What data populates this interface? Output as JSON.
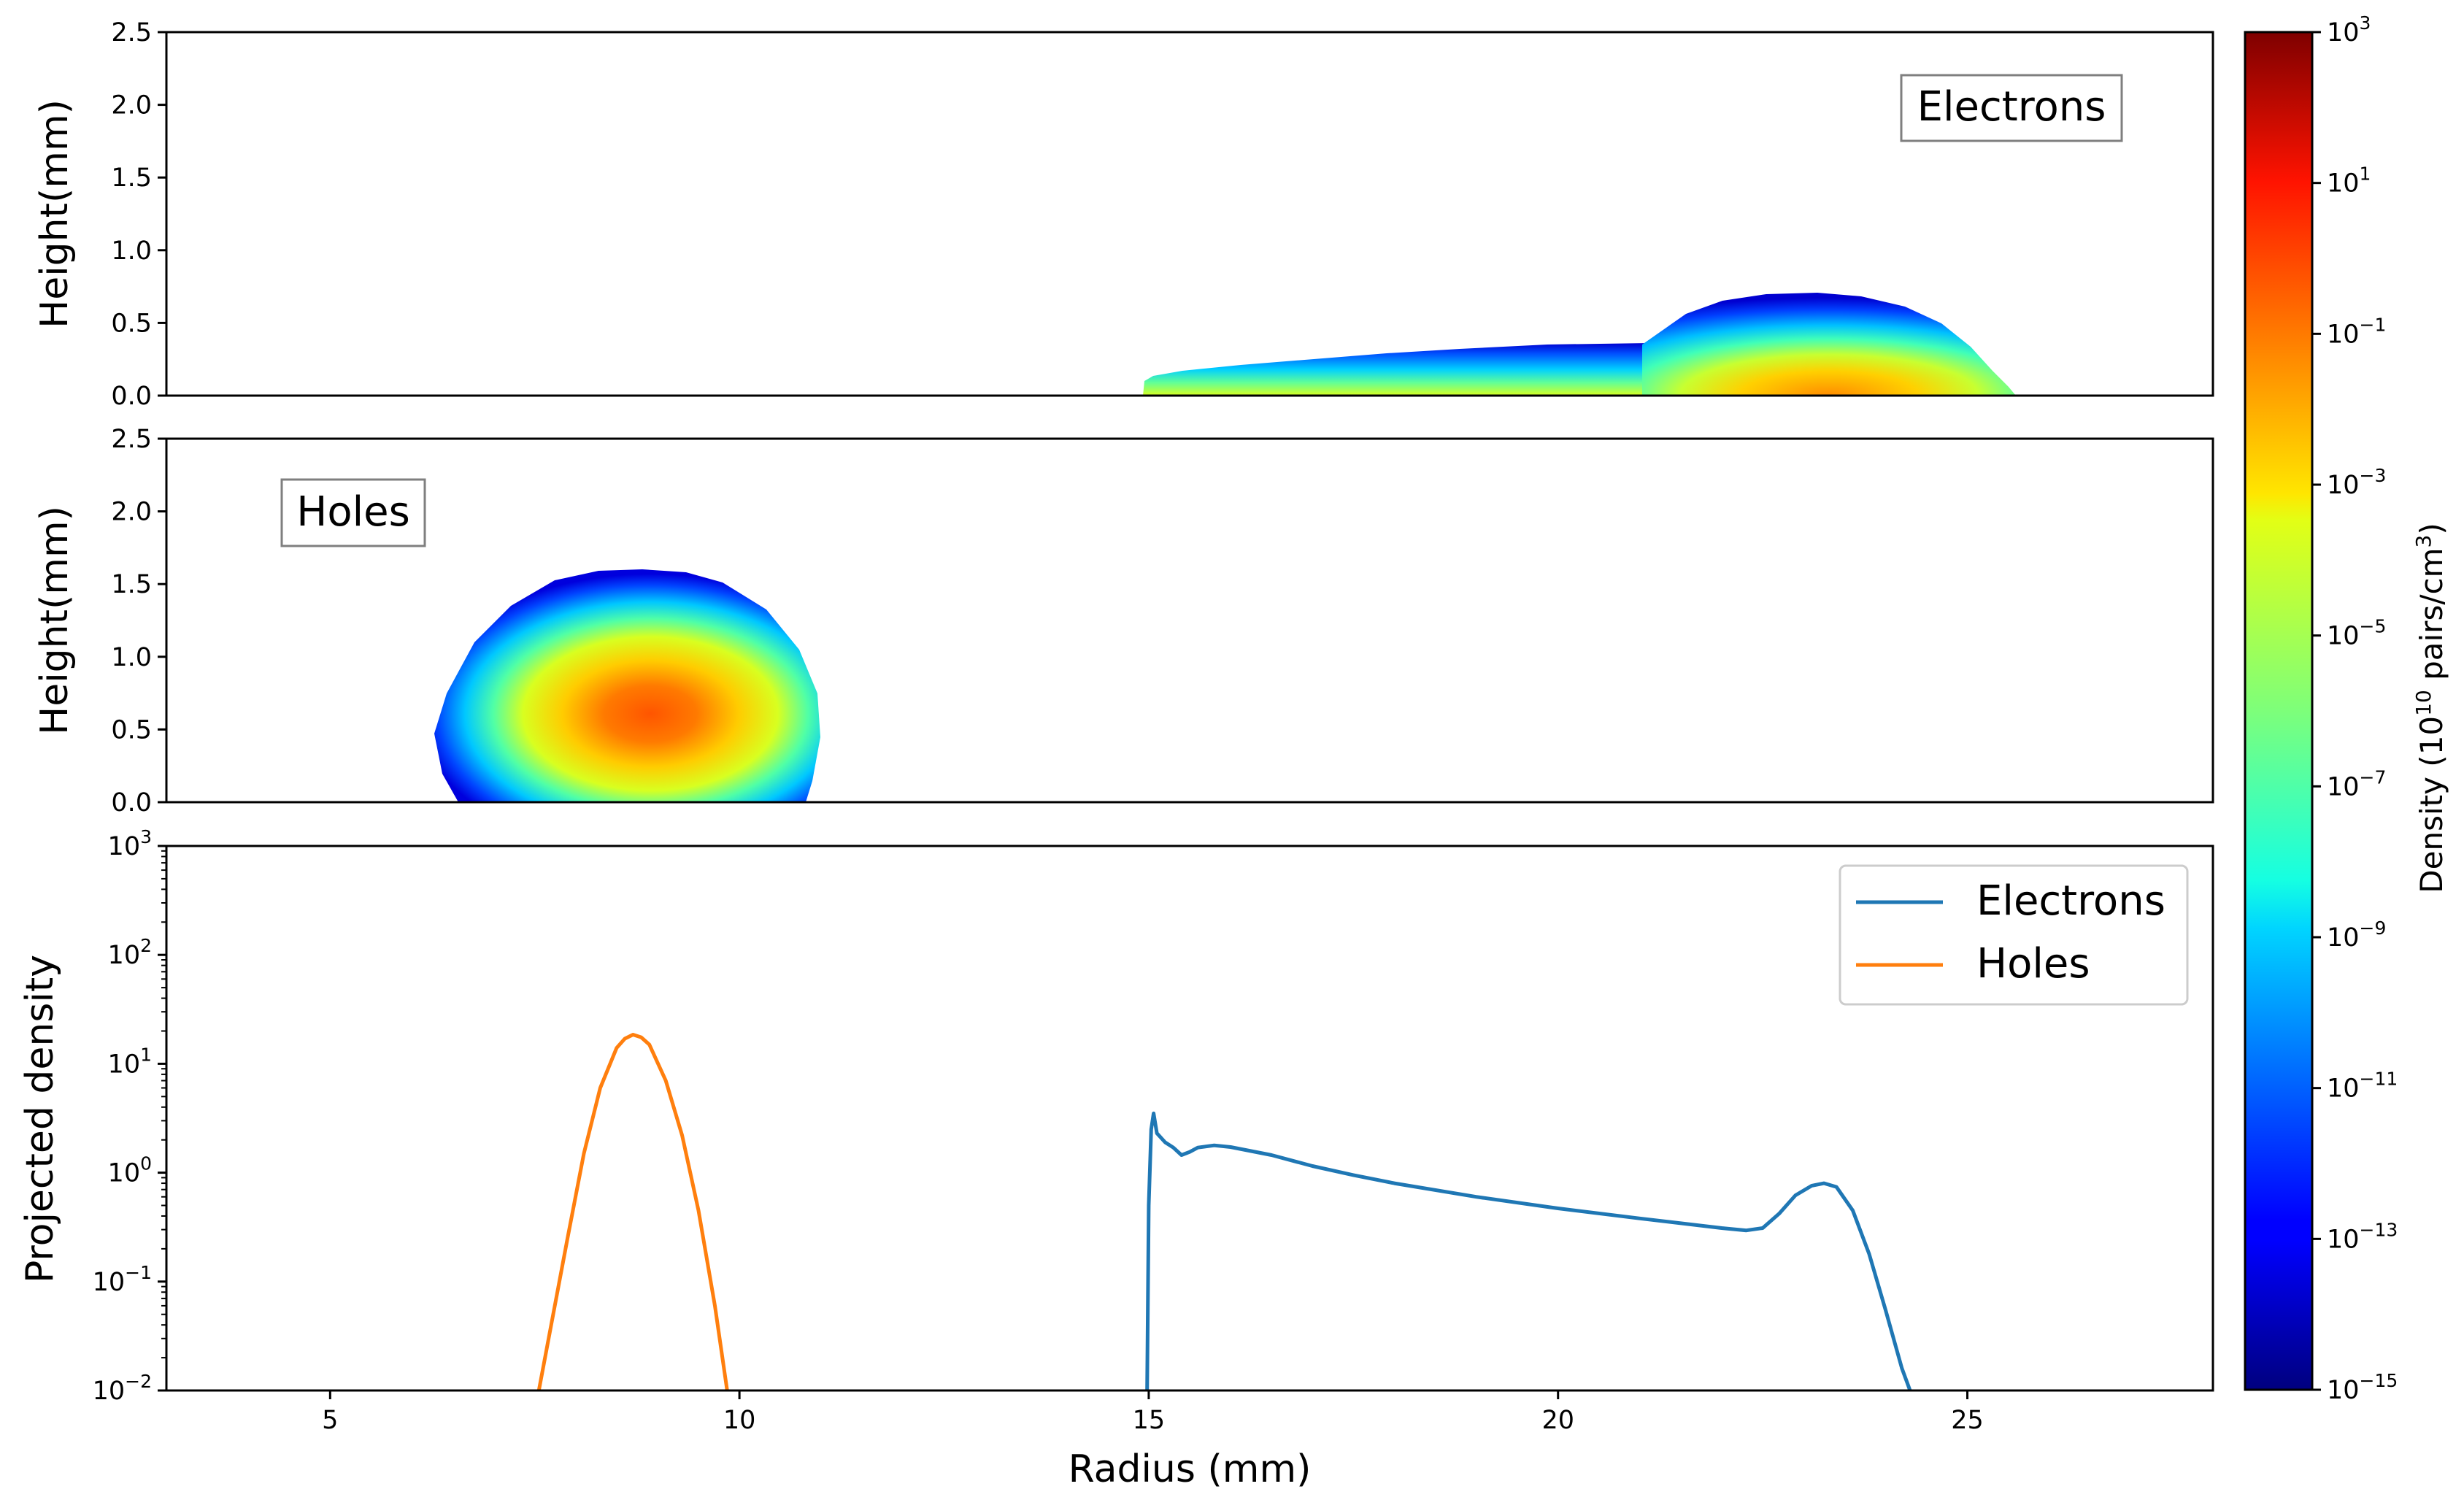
{
  "chart_data": [
    {
      "type": "heatmap",
      "panel": "electrons-density-map",
      "label": "Electrons",
      "ylabel": "Height(mm)",
      "xlim": [
        3,
        28
      ],
      "ylim": [
        0,
        2.5
      ],
      "yticks": [
        "0.0",
        "0.5",
        "1.0",
        "1.5",
        "2.0",
        "2.5"
      ],
      "colormap": "jet",
      "regions": [
        {
          "name": "tail",
          "x_start": 15.0,
          "x_end": 21.2,
          "height_start": 0.12,
          "height_end": 0.37,
          "peak_log_density": -4
        },
        {
          "name": "main-lobe",
          "x_center": 23.2,
          "x_start": 21.0,
          "x_end": 26.2,
          "max_height": 0.7,
          "peak_log_density": -1.5
        }
      ]
    },
    {
      "type": "heatmap",
      "panel": "holes-density-map",
      "label": "Holes",
      "ylabel": "Height(mm)",
      "xlim": [
        3,
        28
      ],
      "ylim": [
        0,
        2.5
      ],
      "yticks": [
        "0.0",
        "0.5",
        "1.0",
        "1.5",
        "2.0",
        "2.5"
      ],
      "colormap": "jet",
      "regions": [
        {
          "name": "lobe",
          "x_center": 8.7,
          "x_start": 6.3,
          "x_end": 11.0,
          "max_height": 1.6,
          "peak_log_density": -0.5
        }
      ]
    },
    {
      "type": "line",
      "panel": "projected-density",
      "xlabel": "Radius (mm)",
      "ylabel": "Projected density",
      "xlim": [
        3,
        28
      ],
      "ylim": [
        0.01,
        1000
      ],
      "yscale": "log",
      "xticks": [
        "5",
        "10",
        "15",
        "20",
        "25"
      ],
      "yticks": [
        {
          "base": "10",
          "exp": "−2"
        },
        {
          "base": "10",
          "exp": "−1"
        },
        {
          "base": "10",
          "exp": "0"
        },
        {
          "base": "10",
          "exp": "1"
        },
        {
          "base": "10",
          "exp": "2"
        },
        {
          "base": "10",
          "exp": "3"
        }
      ],
      "legend": "top-right",
      "series": [
        {
          "name": "Electrons",
          "color": "#1f77b4",
          "x": [
            14.98,
            15.0,
            15.03,
            15.06,
            15.1,
            15.2,
            15.3,
            15.4,
            15.5,
            15.6,
            15.8,
            16.0,
            16.5,
            17,
            17.5,
            18,
            19,
            20,
            21,
            22,
            22.3,
            22.5,
            22.7,
            22.9,
            23.1,
            23.25,
            23.4,
            23.6,
            23.8,
            24.0,
            24.2,
            24.3
          ],
          "y": [
            0.01,
            0.5,
            2.5,
            3.5,
            2.3,
            1.9,
            1.7,
            1.45,
            1.55,
            1.7,
            1.78,
            1.72,
            1.45,
            1.15,
            0.95,
            0.8,
            0.6,
            0.47,
            0.38,
            0.31,
            0.295,
            0.31,
            0.42,
            0.62,
            0.76,
            0.8,
            0.74,
            0.45,
            0.18,
            0.055,
            0.016,
            0.01
          ]
        },
        {
          "name": "Holes",
          "color": "#ff7f0e",
          "x": [
            7.55,
            7.7,
            7.9,
            8.1,
            8.3,
            8.5,
            8.6,
            8.7,
            8.8,
            8.9,
            9.1,
            9.3,
            9.5,
            9.7,
            9.85
          ],
          "y": [
            0.01,
            0.04,
            0.25,
            1.5,
            6,
            14,
            17,
            18.5,
            17.5,
            15,
            7,
            2.2,
            0.45,
            0.06,
            0.01
          ]
        }
      ]
    }
  ],
  "colorbar": {
    "label": "Density (10",
    "label_exp": "10",
    "label_tail": " pairs/cm",
    "label_tail_exp": "3",
    "label_close": ")",
    "scale": "log",
    "range_exp": [
      -15,
      3
    ],
    "ticks": [
      {
        "base": "10",
        "exp": "3"
      },
      {
        "base": "10",
        "exp": "1"
      },
      {
        "base": "10",
        "exp": "−1"
      },
      {
        "base": "10",
        "exp": "−3"
      },
      {
        "base": "10",
        "exp": "−5"
      },
      {
        "base": "10",
        "exp": "−7"
      },
      {
        "base": "10",
        "exp": "−9"
      },
      {
        "base": "10",
        "exp": "−11"
      },
      {
        "base": "10",
        "exp": "−13"
      },
      {
        "base": "10",
        "exp": "−15"
      }
    ]
  }
}
